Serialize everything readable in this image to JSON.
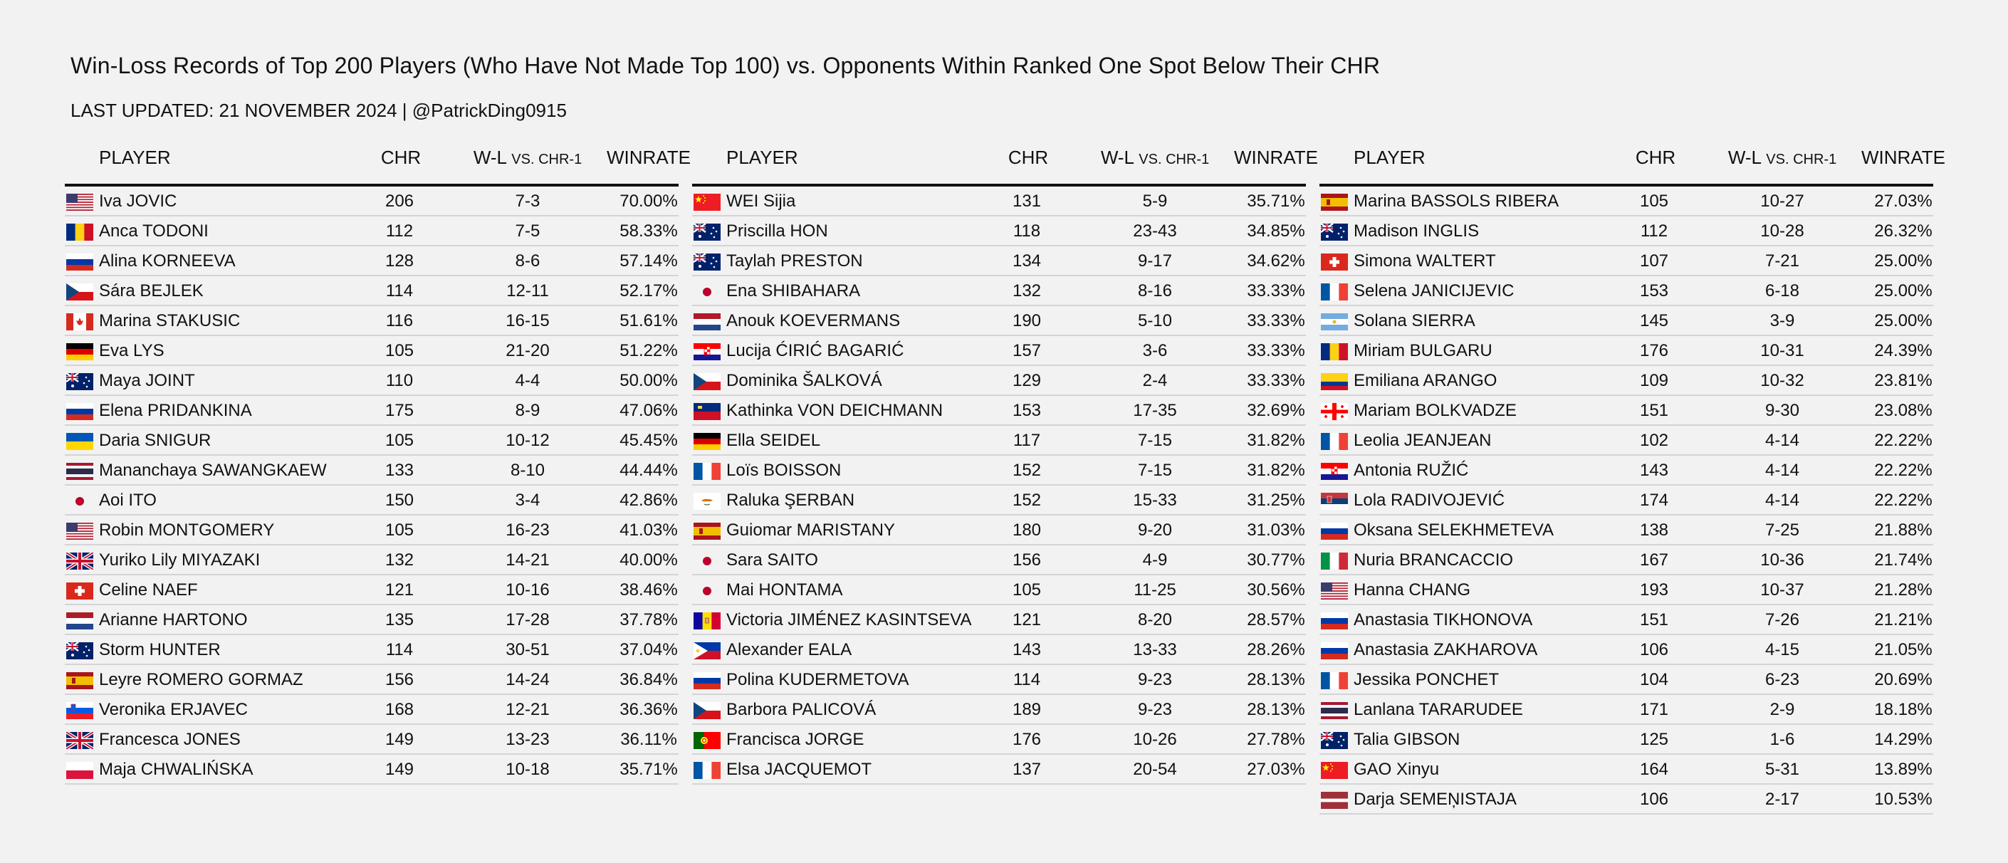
{
  "title": "Win-Loss Records of Top 200 Players (Who Have Not Made Top 100) vs. Opponents Within Ranked One Spot Below Their CHR",
  "subtitle": "LAST UPDATED: 21 NOVEMBER 2024 | @PatrickDing0915",
  "headers": {
    "player": "PLAYER",
    "chr": "CHR",
    "wl_main": "W-L",
    "wl_sub": "VS. CHR-1",
    "winrate": "WINRATE"
  },
  "tables": [
    {
      "rows": [
        {
          "flag": "usa-flag",
          "name": "Iva JOVIC",
          "chr": "206",
          "wl": "7-3",
          "winrate": "70.00%"
        },
        {
          "flag": "romania-flag",
          "name": "Anca TODONI",
          "chr": "112",
          "wl": "7-5",
          "winrate": "58.33%"
        },
        {
          "flag": "russia-flag",
          "name": "Alina KORNEEVA",
          "chr": "128",
          "wl": "8-6",
          "winrate": "57.14%"
        },
        {
          "flag": "czechia-flag",
          "name": "Sára BEJLEK",
          "chr": "114",
          "wl": "12-11",
          "winrate": "52.17%"
        },
        {
          "flag": "canada-flag",
          "name": "Marina STAKUSIC",
          "chr": "116",
          "wl": "16-15",
          "winrate": "51.61%"
        },
        {
          "flag": "germany-flag",
          "name": "Eva LYS",
          "chr": "105",
          "wl": "21-20",
          "winrate": "51.22%"
        },
        {
          "flag": "australia-flag",
          "name": "Maya JOINT",
          "chr": "110",
          "wl": "4-4",
          "winrate": "50.00%"
        },
        {
          "flag": "russia-flag",
          "name": "Elena PRIDANKINA",
          "chr": "175",
          "wl": "8-9",
          "winrate": "47.06%"
        },
        {
          "flag": "ukraine-flag",
          "name": "Daria SNIGUR",
          "chr": "105",
          "wl": "10-12",
          "winrate": "45.45%"
        },
        {
          "flag": "thailand-flag",
          "name": "Mananchaya SAWANGKAEW",
          "chr": "133",
          "wl": "8-10",
          "winrate": "44.44%"
        },
        {
          "flag": "japan-flag",
          "name": "Aoi ITO",
          "chr": "150",
          "wl": "3-4",
          "winrate": "42.86%"
        },
        {
          "flag": "usa-flag",
          "name": "Robin MONTGOMERY",
          "chr": "105",
          "wl": "16-23",
          "winrate": "41.03%"
        },
        {
          "flag": "uk-flag",
          "name": "Yuriko Lily MIYAZAKI",
          "chr": "132",
          "wl": "14-21",
          "winrate": "40.00%"
        },
        {
          "flag": "switzerland-flag",
          "name": "Celine NAEF",
          "chr": "121",
          "wl": "10-16",
          "winrate": "38.46%"
        },
        {
          "flag": "netherlands-flag",
          "name": "Arianne HARTONO",
          "chr": "135",
          "wl": "17-28",
          "winrate": "37.78%"
        },
        {
          "flag": "australia-flag",
          "name": "Storm HUNTER",
          "chr": "114",
          "wl": "30-51",
          "winrate": "37.04%"
        },
        {
          "flag": "spain-flag",
          "name": "Leyre ROMERO GORMAZ",
          "chr": "156",
          "wl": "14-24",
          "winrate": "36.84%"
        },
        {
          "flag": "slovenia-flag",
          "name": "Veronika ERJAVEC",
          "chr": "168",
          "wl": "12-21",
          "winrate": "36.36%"
        },
        {
          "flag": "uk-flag",
          "name": "Francesca JONES",
          "chr": "149",
          "wl": "13-23",
          "winrate": "36.11%"
        },
        {
          "flag": "poland-flag",
          "name": "Maja CHWALIŃSKA",
          "chr": "149",
          "wl": "10-18",
          "winrate": "35.71%"
        }
      ]
    },
    {
      "rows": [
        {
          "flag": "china-flag",
          "name": "WEI Sijia",
          "chr": "131",
          "wl": "5-9",
          "winrate": "35.71%"
        },
        {
          "flag": "australia-flag",
          "name": "Priscilla HON",
          "chr": "118",
          "wl": "23-43",
          "winrate": "34.85%"
        },
        {
          "flag": "australia-flag",
          "name": "Taylah PRESTON",
          "chr": "134",
          "wl": "9-17",
          "winrate": "34.62%"
        },
        {
          "flag": "japan-flag",
          "name": "Ena SHIBAHARA",
          "chr": "132",
          "wl": "8-16",
          "winrate": "33.33%"
        },
        {
          "flag": "netherlands-flag",
          "name": "Anouk KOEVERMANS",
          "chr": "190",
          "wl": "5-10",
          "winrate": "33.33%"
        },
        {
          "flag": "croatia-flag",
          "name": "Lucija ĆIRIĆ BAGARIĆ",
          "chr": "157",
          "wl": "3-6",
          "winrate": "33.33%"
        },
        {
          "flag": "czechia-flag",
          "name": "Dominika ŠALKOVÁ",
          "chr": "129",
          "wl": "2-4",
          "winrate": "33.33%"
        },
        {
          "flag": "liechtenstein-flag",
          "name": "Kathinka VON DEICHMANN",
          "chr": "153",
          "wl": "17-35",
          "winrate": "32.69%"
        },
        {
          "flag": "germany-flag",
          "name": "Ella SEIDEL",
          "chr": "117",
          "wl": "7-15",
          "winrate": "31.82%"
        },
        {
          "flag": "france-flag",
          "name": "Loïs BOISSON",
          "chr": "152",
          "wl": "7-15",
          "winrate": "31.82%"
        },
        {
          "flag": "cyprus-flag",
          "name": "Raluka ŞERBAN",
          "chr": "152",
          "wl": "15-33",
          "winrate": "31.25%"
        },
        {
          "flag": "spain-flag",
          "name": "Guiomar MARISTANY",
          "chr": "180",
          "wl": "9-20",
          "winrate": "31.03%"
        },
        {
          "flag": "japan-flag",
          "name": "Sara SAITO",
          "chr": "156",
          "wl": "4-9",
          "winrate": "30.77%"
        },
        {
          "flag": "japan-flag",
          "name": "Mai HONTAMA",
          "chr": "105",
          "wl": "11-25",
          "winrate": "30.56%"
        },
        {
          "flag": "andorra-flag",
          "name": "Victoria JIMÉNEZ KASINTSEVA",
          "chr": "121",
          "wl": "8-20",
          "winrate": "28.57%"
        },
        {
          "flag": "philippines-flag",
          "name": "Alexander EALA",
          "chr": "143",
          "wl": "13-33",
          "winrate": "28.26%"
        },
        {
          "flag": "russia-flag",
          "name": "Polina KUDERMETOVA",
          "chr": "114",
          "wl": "9-23",
          "winrate": "28.13%"
        },
        {
          "flag": "czechia-flag",
          "name": "Barbora PALICOVÁ",
          "chr": "189",
          "wl": "9-23",
          "winrate": "28.13%"
        },
        {
          "flag": "portugal-flag",
          "name": "Francisca JORGE",
          "chr": "176",
          "wl": "10-26",
          "winrate": "27.78%"
        },
        {
          "flag": "france-flag",
          "name": "Elsa JACQUEMOT",
          "chr": "137",
          "wl": "20-54",
          "winrate": "27.03%"
        }
      ]
    },
    {
      "rows": [
        {
          "flag": "spain-flag",
          "name": "Marina BASSOLS RIBERA",
          "chr": "105",
          "wl": "10-27",
          "winrate": "27.03%"
        },
        {
          "flag": "australia-flag",
          "name": "Madison INGLIS",
          "chr": "112",
          "wl": "10-28",
          "winrate": "26.32%"
        },
        {
          "flag": "switzerland-flag",
          "name": "Simona WALTERT",
          "chr": "107",
          "wl": "7-21",
          "winrate": "25.00%"
        },
        {
          "flag": "france-flag",
          "name": "Selena JANICIJEVIC",
          "chr": "153",
          "wl": "6-18",
          "winrate": "25.00%"
        },
        {
          "flag": "argentina-flag",
          "name": "Solana SIERRA",
          "chr": "145",
          "wl": "3-9",
          "winrate": "25.00%"
        },
        {
          "flag": "romania-flag",
          "name": "Miriam BULGARU",
          "chr": "176",
          "wl": "10-31",
          "winrate": "24.39%"
        },
        {
          "flag": "colombia-flag",
          "name": "Emiliana ARANGO",
          "chr": "109",
          "wl": "10-32",
          "winrate": "23.81%"
        },
        {
          "flag": "georgia-flag",
          "name": "Mariam BOLKVADZE",
          "chr": "151",
          "wl": "9-30",
          "winrate": "23.08%"
        },
        {
          "flag": "france-flag",
          "name": "Leolia JEANJEAN",
          "chr": "102",
          "wl": "4-14",
          "winrate": "22.22%"
        },
        {
          "flag": "croatia-flag",
          "name": "Antonia RUŽIĆ",
          "chr": "143",
          "wl": "4-14",
          "winrate": "22.22%"
        },
        {
          "flag": "serbia-flag",
          "name": "Lola RADIVOJEVIĆ",
          "chr": "174",
          "wl": "4-14",
          "winrate": "22.22%"
        },
        {
          "flag": "russia-flag",
          "name": "Oksana SELEKHMETEVA",
          "chr": "138",
          "wl": "7-25",
          "winrate": "21.88%"
        },
        {
          "flag": "italy-flag",
          "name": "Nuria BRANCACCIO",
          "chr": "167",
          "wl": "10-36",
          "winrate": "21.74%"
        },
        {
          "flag": "usa-flag",
          "name": "Hanna CHANG",
          "chr": "193",
          "wl": "10-37",
          "winrate": "21.28%"
        },
        {
          "flag": "russia-flag",
          "name": "Anastasia TIKHONOVA",
          "chr": "151",
          "wl": "7-26",
          "winrate": "21.21%"
        },
        {
          "flag": "russia-flag",
          "name": "Anastasia ZAKHAROVA",
          "chr": "106",
          "wl": "4-15",
          "winrate": "21.05%"
        },
        {
          "flag": "france-flag",
          "name": "Jessika PONCHET",
          "chr": "104",
          "wl": "6-23",
          "winrate": "20.69%"
        },
        {
          "flag": "thailand-flag",
          "name": "Lanlana TARARUDEE",
          "chr": "171",
          "wl": "2-9",
          "winrate": "18.18%"
        },
        {
          "flag": "australia-flag",
          "name": "Talia GIBSON",
          "chr": "125",
          "wl": "1-6",
          "winrate": "14.29%"
        },
        {
          "flag": "china-flag",
          "name": "GAO Xinyu",
          "chr": "164",
          "wl": "5-31",
          "winrate": "13.89%"
        },
        {
          "flag": "latvia-flag",
          "name": "Darja SEMEŅISTAJA",
          "chr": "106",
          "wl": "2-17",
          "winrate": "10.53%"
        }
      ]
    }
  ]
}
